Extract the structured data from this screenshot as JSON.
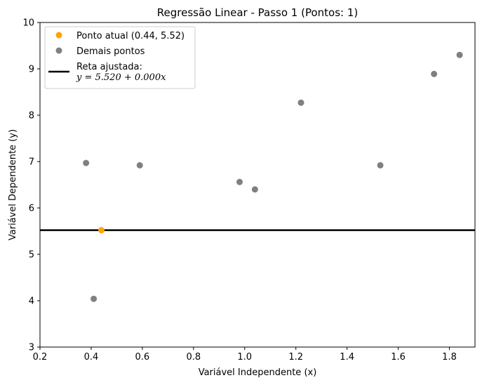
{
  "chart_data": {
    "type": "scatter",
    "title": "Regressão Linear - Passo 1 (Pontos: 1)",
    "xlabel": "Variável Independente (x)",
    "ylabel": "Variável Dependente (y)",
    "xlim": [
      0.2,
      1.9
    ],
    "ylim": [
      3,
      10
    ],
    "xticks": [
      0.2,
      0.4,
      0.6,
      0.8,
      1.0,
      1.2,
      1.4,
      1.6,
      1.8
    ],
    "yticks": [
      3,
      4,
      5,
      6,
      7,
      8,
      9,
      10
    ],
    "grid": false,
    "legend_position": "top-left",
    "series": [
      {
        "name": "Ponto atual (0.44, 5.52)",
        "color": "#ffa500",
        "points": [
          {
            "x": 0.44,
            "y": 5.52
          }
        ]
      },
      {
        "name": "Demais pontos",
        "color": "#808080",
        "points": [
          {
            "x": 0.38,
            "y": 6.97
          },
          {
            "x": 0.41,
            "y": 4.04
          },
          {
            "x": 0.59,
            "y": 6.92
          },
          {
            "x": 0.98,
            "y": 6.56
          },
          {
            "x": 1.04,
            "y": 6.4
          },
          {
            "x": 1.22,
            "y": 8.27
          },
          {
            "x": 1.53,
            "y": 6.92
          },
          {
            "x": 1.74,
            "y": 8.89
          },
          {
            "x": 1.84,
            "y": 9.3
          }
        ]
      }
    ],
    "fit_line": {
      "label_line1": "Reta ajustada:",
      "label_line2": "y = 5.520 + 0.000x",
      "intercept": 5.52,
      "slope": 0.0,
      "color": "#000000"
    }
  }
}
